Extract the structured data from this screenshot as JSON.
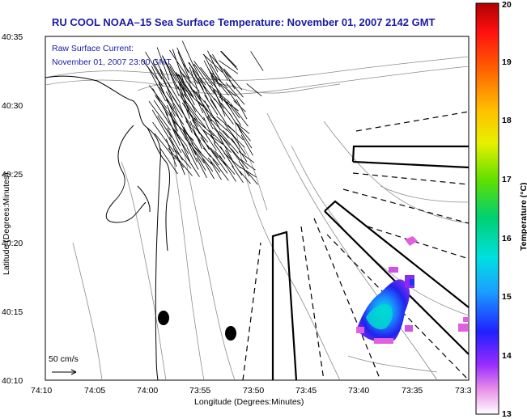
{
  "title": "RU COOL  NOAA–15  Sea Surface Temperature:  November 01, 2007 2142 GMT",
  "legend": {
    "line1": "Raw Surface Current:",
    "line2": "November 01, 2007 23:00 GMT",
    "scale_label": "50 cm/s"
  },
  "axes": {
    "xlabel": "Longitude (Degrees:Minutes)",
    "ylabel": "Latitude (Degrees:Minutes)",
    "x_ticks": [
      "74:10",
      "74:05",
      "74:00",
      "73:55",
      "73:50",
      "73:45",
      "73:40",
      "73:35",
      "73:3"
    ],
    "y_ticks": [
      "40:35",
      "40:30",
      "40:25",
      "40:20",
      "40:15",
      "40:10"
    ]
  },
  "colorbar": {
    "label": "Temperature (°C)",
    "ticks": [
      "20",
      "19",
      "18",
      "17",
      "16",
      "15",
      "14",
      "13"
    ],
    "min": 13,
    "max": 20
  },
  "colors": {
    "title": "#1a1aa6",
    "land_outline": "#000000",
    "bathymetry": "#8c8c8c"
  }
}
